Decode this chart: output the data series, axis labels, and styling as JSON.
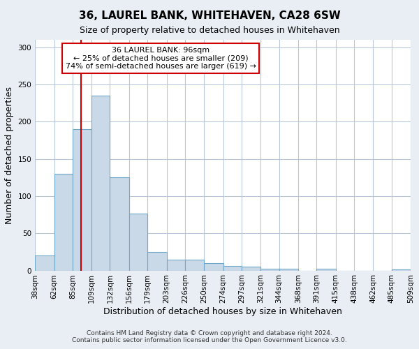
{
  "title": "36, LAUREL BANK, WHITEHAVEN, CA28 6SW",
  "subtitle": "Size of property relative to detached houses in Whitehaven",
  "xlabel": "Distribution of detached houses by size in Whitehaven",
  "ylabel": "Number of detached properties",
  "footer_line1": "Contains HM Land Registry data © Crown copyright and database right 2024.",
  "footer_line2": "Contains public sector information licensed under the Open Government Licence v3.0.",
  "bin_edges": [
    38,
    62,
    85,
    109,
    132,
    156,
    179,
    203,
    226,
    250,
    274,
    297,
    321,
    344,
    368,
    391,
    415,
    438,
    462,
    485,
    509
  ],
  "bin_counts": [
    20,
    130,
    190,
    235,
    125,
    76,
    25,
    15,
    15,
    10,
    6,
    5,
    2,
    2,
    0,
    2,
    0,
    0,
    0,
    1
  ],
  "bar_facecolor": "#c9d9e8",
  "bar_edgecolor": "#6fa8c8",
  "vline_x": 96,
  "vline_color": "#cc0000",
  "annotation_title": "36 LAUREL BANK: 96sqm",
  "annotation_line1": "← 25% of detached houses are smaller (209)",
  "annotation_line2": "74% of semi-detached houses are larger (619) →",
  "annotation_box_color": "#cc0000",
  "ylim": [
    0,
    310
  ],
  "background_color": "#e8eef4",
  "plot_background": "#ffffff",
  "grid_color": "#b8c8d8",
  "title_fontsize": 11,
  "subtitle_fontsize": 9,
  "axis_label_fontsize": 9,
  "tick_label_fontsize": 7.5,
  "footer_fontsize": 6.5
}
